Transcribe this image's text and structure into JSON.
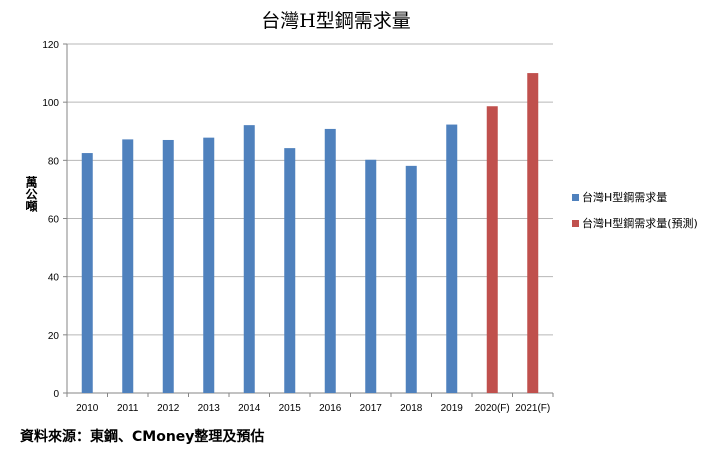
{
  "chart_data": {
    "type": "bar",
    "title": "台灣H型鋼需求量",
    "ylabel": "萬公噸",
    "xlabel": "",
    "ylim": [
      0,
      120
    ],
    "yticks": [
      0,
      20,
      40,
      60,
      80,
      100,
      120
    ],
    "grid": true,
    "legend_position": "right",
    "categories": [
      "2010",
      "2011",
      "2012",
      "2013",
      "2014",
      "2015",
      "2016",
      "2017",
      "2018",
      "2019",
      "2020(F)",
      "2021(F)"
    ],
    "series": [
      {
        "name": "台灣H型鋼需求量",
        "color": "#4f81bd",
        "values": [
          82.5,
          87.2,
          87.0,
          87.8,
          92.1,
          84.2,
          90.8,
          80.2,
          78.1,
          92.3,
          null,
          null
        ]
      },
      {
        "name": "台灣H型鋼需求量(預測)",
        "color": "#c0504d",
        "values": [
          null,
          null,
          null,
          null,
          null,
          null,
          null,
          null,
          null,
          null,
          98.6,
          110.0
        ]
      }
    ]
  },
  "source": "資料來源：東鋼、CMoney整理及預估"
}
